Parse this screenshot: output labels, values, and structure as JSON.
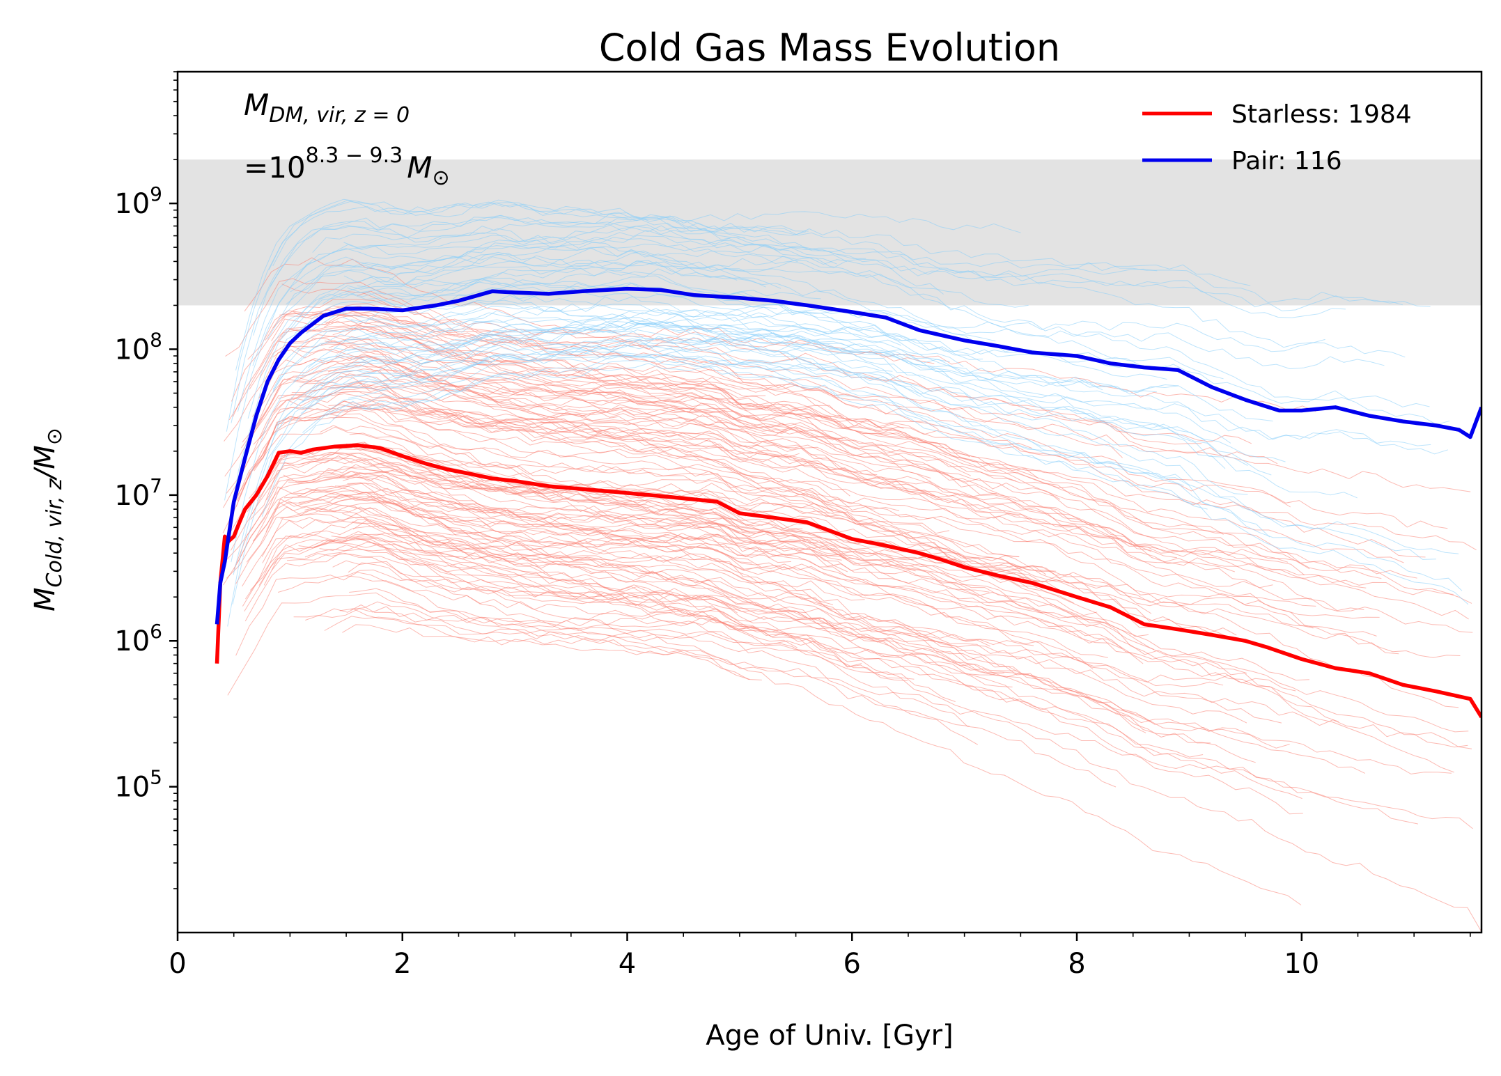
{
  "chart_data": {
    "type": "line",
    "title": "Cold Gas Mass Evolution",
    "xlabel": "Age of Univ. [Gyr]",
    "ylabel": {
      "main": "M",
      "sub": "Cold, vir, z",
      "unit": "/M",
      "unit_sub": "⊙"
    },
    "xlim": [
      0,
      11.6
    ],
    "ylim": [
      10000,
      8000000000
    ],
    "yscale": "log",
    "grid": false,
    "legend_position": "top-right",
    "x_ticks": [
      {
        "value": 0,
        "label": "0"
      },
      {
        "value": 2,
        "label": "2"
      },
      {
        "value": 4,
        "label": "4"
      },
      {
        "value": 6,
        "label": "6"
      },
      {
        "value": 8,
        "label": "8"
      },
      {
        "value": 10,
        "label": "10"
      }
    ],
    "y_ticks": [
      {
        "value": 100000,
        "base": "10",
        "exp": "5"
      },
      {
        "value": 1000000,
        "base": "10",
        "exp": "6"
      },
      {
        "value": 10000000,
        "base": "10",
        "exp": "7"
      },
      {
        "value": 100000000,
        "base": "10",
        "exp": "8"
      },
      {
        "value": 1000000000,
        "base": "10",
        "exp": "9"
      }
    ],
    "shaded_band": {
      "y_low": 200000000,
      "y_high": 2000000000,
      "color": "#e3e3e3"
    },
    "annotation": {
      "line1_main": "M",
      "line1_sub": "DM, vir, z = 0",
      "line2_prefix": "=10",
      "line2_sup": "8.3 − 9.3",
      "line2_suffix": "M",
      "line2_suffix_sub": "⊙"
    },
    "series": [
      {
        "name": "Starless: 1984",
        "color": "#ff0000",
        "scatter_color": "#fa8072",
        "x": [
          0.35,
          0.38,
          0.42,
          0.45,
          0.5,
          0.55,
          0.6,
          0.7,
          0.8,
          0.9,
          1.0,
          1.1,
          1.2,
          1.4,
          1.6,
          1.8,
          2.0,
          2.2,
          2.4,
          2.6,
          2.8,
          3.0,
          3.3,
          3.6,
          3.9,
          4.2,
          4.5,
          4.8,
          5.0,
          5.3,
          5.6,
          6.0,
          6.3,
          6.6,
          6.8,
          7.0,
          7.3,
          7.6,
          8.0,
          8.3,
          8.6,
          8.9,
          9.2,
          9.5,
          9.7,
          10.0,
          10.3,
          10.6,
          10.9,
          11.2,
          11.5,
          11.6
        ],
        "y": [
          700000,
          2500000,
          5200000,
          4800000,
          5200000,
          6500000,
          8000000,
          10000000,
          13500000,
          19500000,
          20000000,
          19500000,
          20500000,
          21500000,
          22000000,
          21000000,
          18500000,
          16500000,
          15000000,
          14000000,
          13000000,
          12500000,
          11500000,
          11000000,
          10500000,
          10000000,
          9500000,
          9000000,
          7500000,
          7000000,
          6500000,
          5000000,
          4500000,
          4000000,
          3600000,
          3200000,
          2800000,
          2500000,
          2000000,
          1700000,
          1300000,
          1200000,
          1100000,
          1000000,
          900000,
          750000,
          650000,
          600000,
          500000,
          450000,
          400000,
          300000
        ]
      },
      {
        "name": "Pair: 116",
        "color": "#0000ee",
        "scatter_color": "#87cefa",
        "x": [
          0.35,
          0.38,
          0.42,
          0.45,
          0.5,
          0.6,
          0.7,
          0.8,
          0.9,
          1.0,
          1.1,
          1.3,
          1.5,
          1.7,
          2.0,
          2.3,
          2.5,
          2.8,
          3.0,
          3.3,
          3.6,
          4.0,
          4.3,
          4.6,
          5.0,
          5.3,
          5.6,
          6.0,
          6.3,
          6.6,
          7.0,
          7.3,
          7.6,
          8.0,
          8.3,
          8.6,
          8.9,
          9.2,
          9.5,
          9.8,
          10.0,
          10.3,
          10.6,
          10.9,
          11.2,
          11.4,
          11.5,
          11.6
        ],
        "y": [
          1300000,
          2500000,
          3500000,
          5000000,
          9000000,
          18000000,
          35000000,
          60000000,
          85000000,
          110000000,
          130000000,
          170000000,
          190000000,
          190000000,
          185000000,
          200000000,
          215000000,
          250000000,
          245000000,
          240000000,
          250000000,
          260000000,
          255000000,
          235000000,
          225000000,
          215000000,
          200000000,
          180000000,
          165000000,
          135000000,
          115000000,
          105000000,
          95000000,
          90000000,
          80000000,
          75000000,
          72000000,
          55000000,
          45000000,
          38000000,
          38000000,
          40000000,
          35000000,
          32000000,
          30000000,
          28000000,
          25000000,
          40000000
        ]
      }
    ]
  }
}
